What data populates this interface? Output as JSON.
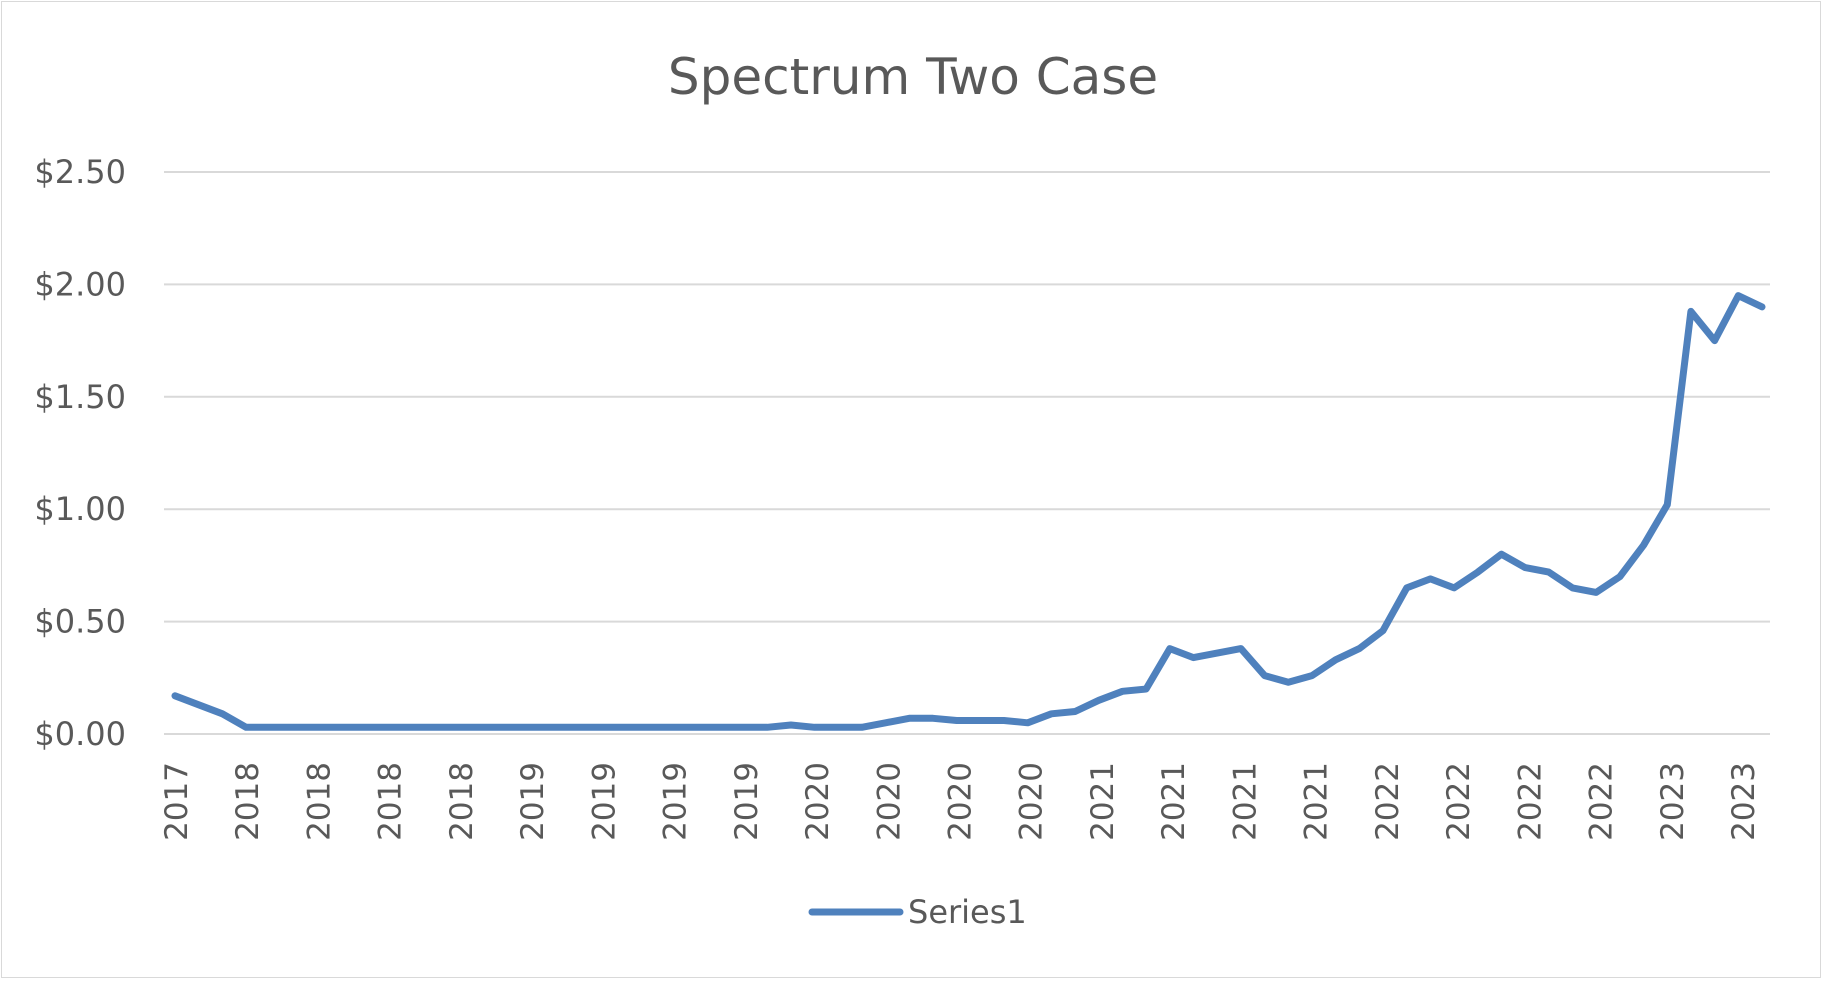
{
  "chart_data": {
    "type": "line",
    "title": "Spectrum Two Case",
    "xlabel": "",
    "ylabel": "",
    "ylim": [
      0,
      2.5
    ],
    "yticks": [
      "$0.00",
      "$0.50",
      "$1.00",
      "$1.50",
      "$2.00",
      "$2.50"
    ],
    "ytick_values": [
      0,
      0.5,
      1.0,
      1.5,
      2.0,
      2.5
    ],
    "x_tick_labels": [
      "2017",
      "2018",
      "2018",
      "2018",
      "2018",
      "2019",
      "2019",
      "2019",
      "2019",
      "2020",
      "2020",
      "2020",
      "2020",
      "2021",
      "2021",
      "2021",
      "2021",
      "2022",
      "2022",
      "2022",
      "2022",
      "2023",
      "2023"
    ],
    "grid": true,
    "legend_position": "bottom",
    "series": [
      {
        "name": "Series1",
        "color": "#4f81bd",
        "values": [
          0.17,
          0.13,
          0.09,
          0.03,
          0.03,
          0.03,
          0.03,
          0.03,
          0.03,
          0.03,
          0.03,
          0.03,
          0.03,
          0.03,
          0.03,
          0.03,
          0.03,
          0.03,
          0.03,
          0.03,
          0.03,
          0.03,
          0.03,
          0.03,
          0.03,
          0.03,
          0.04,
          0.03,
          0.03,
          0.03,
          0.05,
          0.07,
          0.07,
          0.06,
          0.06,
          0.06,
          0.05,
          0.09,
          0.1,
          0.15,
          0.19,
          0.2,
          0.38,
          0.34,
          0.36,
          0.38,
          0.26,
          0.23,
          0.26,
          0.33,
          0.38,
          0.46,
          0.65,
          0.69,
          0.65,
          0.72,
          0.8,
          0.74,
          0.72,
          0.65,
          0.63,
          0.7,
          0.84,
          1.02,
          1.88,
          1.75,
          1.95,
          1.9
        ]
      }
    ]
  }
}
